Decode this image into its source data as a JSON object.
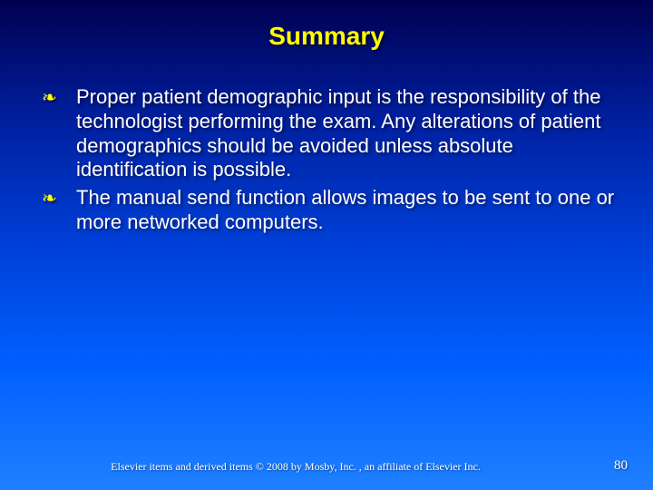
{
  "title": "Summary",
  "title_color": "#ffff00",
  "title_fontsize": 28,
  "body_color": "#ffffff",
  "body_fontsize": 22,
  "bullet_marker": "❧",
  "bullet_marker_color": "#ffff00",
  "background_gradient": [
    "#000050",
    "#0020a0",
    "#0040d8",
    "#0060ff",
    "#2080ff"
  ],
  "bullets": [
    "Proper patient demographic input is the responsibility of the technologist performing the exam. Any alterations of patient demographics should be avoided unless absolute identification is possible.",
    "The manual send function allows images to be sent to one or more networked computers."
  ],
  "footer": {
    "copyright": "Elsevier items and derived items © 2008 by Mosby, Inc. , an affiliate of Elsevier Inc.",
    "page_number": "80",
    "font_family": "Times New Roman",
    "fontsize": 12
  }
}
